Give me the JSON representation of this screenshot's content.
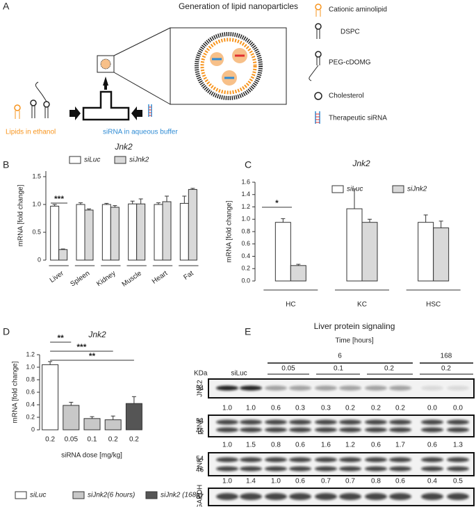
{
  "panel_labels": [
    "A",
    "B",
    "C",
    "D",
    "E"
  ],
  "panel_a": {
    "title": "Generation of lipid nanoparticles",
    "legend": [
      "Cationic aminolipid",
      "DSPC",
      "PEG-cDOMG",
      "Cholesterol",
      "Therapeutic siRNA"
    ],
    "lipids_label": "Lipids in ethanol",
    "sirna_label": "siRNA in aqueous buffer"
  },
  "chart_data": [
    {
      "type": "bar",
      "title": "Jnk2",
      "y_label": "mRNA [fold change]",
      "categories": [
        "Liver",
        "Spleen",
        "Kidney",
        "Muscle",
        "Heart",
        "Fat"
      ],
      "series": [
        {
          "name": "siLuc",
          "color": "#ffffff",
          "values": [
            0.97,
            1.0,
            1.0,
            1.01,
            1.0,
            1.02
          ],
          "errors": [
            0.03,
            0.03,
            0.02,
            0.05,
            0.03,
            0.13
          ]
        },
        {
          "name": "siJnk2",
          "color": "#d9d9d9",
          "values": [
            0.19,
            0.9,
            0.95,
            1.01,
            1.05,
            1.27
          ],
          "errors": [
            0.01,
            0.02,
            0.03,
            0.09,
            0.1,
            0.02
          ]
        }
      ],
      "ylim": [
        0,
        1.6
      ],
      "yticks": [
        0,
        0.5,
        {
          "value": 1,
          "label": "1.0"
        },
        1.5
      ],
      "annotations": [
        "***"
      ]
    },
    {
      "type": "bar",
      "title": "Jnk2",
      "y_label": "mRNA [fold change]",
      "categories": [
        "HC",
        "KC",
        "HSC"
      ],
      "series": [
        {
          "name": "siLuc",
          "color": "#ffffff",
          "values": [
            0.95,
            1.17,
            0.95
          ],
          "errors": [
            0.06,
            0.32,
            0.12
          ]
        },
        {
          "name": "siJnk2",
          "color": "#d9d9d9",
          "values": [
            0.25,
            0.95,
            0.86
          ],
          "errors": [
            0.02,
            0.05,
            0.11
          ]
        }
      ],
      "ylim": [
        0,
        1.6
      ],
      "yticks": [
        {
          "value": 0,
          "label": "0.0"
        },
        0.2,
        0.4,
        0.6,
        0.8,
        {
          "value": 1,
          "label": "1.0"
        },
        1.2,
        1.4,
        1.6
      ],
      "annotations": [
        "*"
      ]
    },
    {
      "type": "bar",
      "title": "Jnk2",
      "y_label": "mRNA [fold change]",
      "x_label": "siRNA dose [mg/kg]",
      "categories": [
        "0.2",
        "0.05",
        "0.1",
        "0.2",
        "0.2"
      ],
      "series": [
        {
          "name": "siLuc",
          "color": "#ffffff",
          "values": [
            1.04,
            null,
            null,
            null,
            null
          ],
          "errors": [
            0.05,
            null,
            null,
            null,
            null
          ]
        },
        {
          "name": "siJnk2(6 hours)",
          "color": "#c8c8c8",
          "values": [
            null,
            0.39,
            0.18,
            0.16,
            null
          ],
          "errors": [
            null,
            0.05,
            0.03,
            0.06,
            null
          ]
        },
        {
          "name": "siJnk2 (168h)",
          "color": "#555555",
          "values": [
            null,
            null,
            null,
            null,
            0.42
          ],
          "errors": [
            null,
            null,
            null,
            null,
            0.11
          ]
        }
      ],
      "ylim": [
        0,
        1.2
      ],
      "yticks": [
        0,
        0.2,
        0.4,
        0.6,
        0.8,
        {
          "value": 1,
          "label": "1.0"
        },
        1.2
      ],
      "annotations": [
        "**",
        "***",
        "**"
      ]
    }
  ],
  "panel_e": {
    "title": "Liver protein signaling",
    "time_label": "Time [hours]",
    "time_groups": [
      "6",
      "168"
    ],
    "kda_label": "KDa",
    "doses": [
      "siLuc",
      "0.05",
      "0.1",
      "0.2",
      "0.2"
    ],
    "rows": [
      {
        "name": "JNK2",
        "kda": [
          "54"
        ]
      },
      {
        "name": "pJNK",
        "kda": [
          "54",
          "46"
        ]
      },
      {
        "name": "JNK",
        "kda": [
          "54",
          "46"
        ]
      },
      {
        "name": "GAPDH",
        "kda": [
          "37"
        ]
      }
    ],
    "quantification": [
      [
        "1.0",
        "1.0",
        "0.6",
        "0.3",
        "0.3",
        "0.2",
        "0.2",
        "0.2",
        "0.0",
        "0.0"
      ],
      [
        "1.0",
        "1.5",
        "0.8",
        "0.6",
        "1.6",
        "1.2",
        "0.6",
        "1.7",
        "0.6",
        "1.3"
      ],
      [
        "1.0",
        "1.4",
        "1.0",
        "0.6",
        "0.7",
        "0.7",
        "0.8",
        "0.6",
        "0.4",
        "0.5"
      ]
    ]
  }
}
